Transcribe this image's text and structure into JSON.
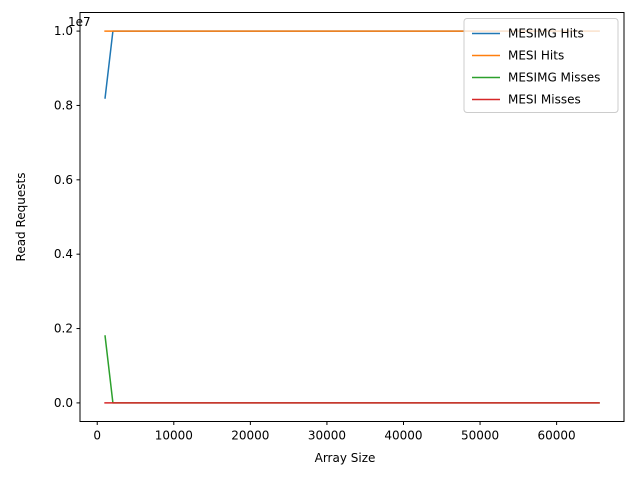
{
  "chart_data": {
    "type": "line",
    "xlabel": "Array Size",
    "ylabel": "Read Requests",
    "y_offset_label": "1e7",
    "xlim": [
      -2250,
      68800
    ],
    "ylim": [
      -0.05,
      1.05
    ],
    "x_ticks": [
      0,
      10000,
      20000,
      30000,
      40000,
      50000,
      60000
    ],
    "x_tick_labels": [
      "0",
      "10000",
      "20000",
      "30000",
      "40000",
      "50000",
      "60000"
    ],
    "y_ticks": [
      0.0,
      0.2,
      0.4,
      0.6,
      0.8,
      1.0
    ],
    "y_tick_labels": [
      "0.0",
      "0.2",
      "0.4",
      "0.6",
      "0.8",
      "1.0"
    ],
    "grid": false,
    "legend_position": "top-right",
    "x": [
      1024,
      2048,
      4096,
      8192,
      16384,
      32768,
      65536
    ],
    "series": [
      {
        "name": "MESIMG Hits",
        "color": "#1f77b4",
        "values": [
          0.82,
          1.0,
          1.0,
          1.0,
          1.0,
          1.0,
          1.0
        ]
      },
      {
        "name": "MESI Hits",
        "color": "#ff7f0e",
        "values": [
          1.0,
          1.0,
          1.0,
          1.0,
          1.0,
          1.0,
          1.0
        ]
      },
      {
        "name": "MESIMG Misses",
        "color": "#2ca02c",
        "values": [
          0.18,
          0.0,
          0.0,
          0.0,
          0.0,
          0.0,
          0.0
        ]
      },
      {
        "name": "MESI Misses",
        "color": "#d62728",
        "values": [
          0.0,
          0.0,
          0.0,
          0.0,
          0.0,
          0.0,
          0.0
        ]
      }
    ]
  }
}
